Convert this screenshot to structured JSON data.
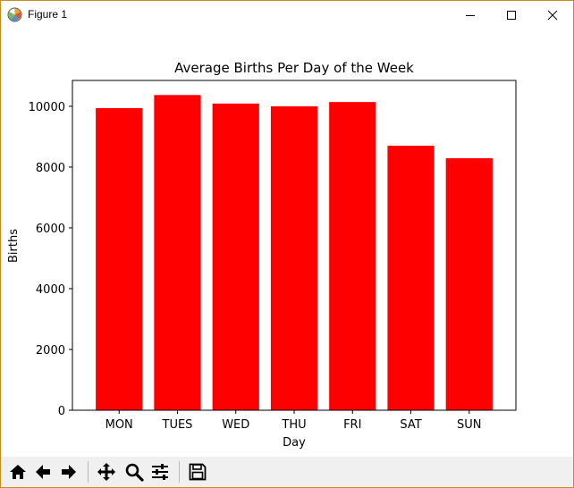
{
  "window": {
    "title": "Figure 1",
    "icons": [
      "matplotlib-icon",
      "minimize-icon",
      "maximize-icon",
      "close-icon"
    ],
    "border_color": "#c98a1e"
  },
  "toolbar": {
    "buttons": [
      {
        "name": "home-icon"
      },
      {
        "name": "back-arrow-icon"
      },
      {
        "name": "forward-arrow-icon"
      },
      {
        "name": "pan-icon"
      },
      {
        "name": "zoom-icon"
      },
      {
        "name": "configure-subplots-icon"
      },
      {
        "name": "save-icon"
      }
    ]
  },
  "chart_data": {
    "type": "bar",
    "title": "Average Births Per Day of the Week",
    "xlabel": "Day",
    "ylabel": "Births",
    "categories": [
      "MON",
      "TUES",
      "WED",
      "THU",
      "FRI",
      "SAT",
      "SUN"
    ],
    "values": [
      9940,
      10370,
      10090,
      10000,
      10140,
      8700,
      8290
    ],
    "ylim": [
      0,
      10850
    ],
    "yticks": [
      0,
      2000,
      4000,
      6000,
      8000,
      10000
    ],
    "bar_color": "#ff0000",
    "grid": false,
    "legend": false
  }
}
